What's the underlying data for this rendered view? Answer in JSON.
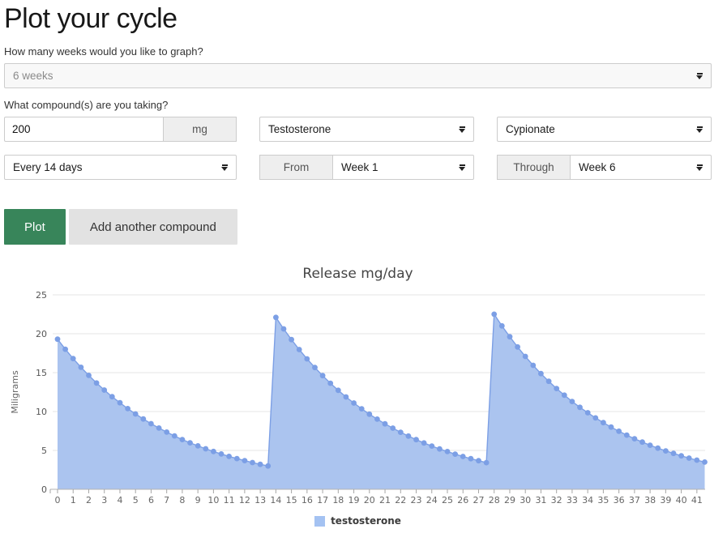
{
  "page": {
    "title": "Plot your cycle",
    "weeks_question": "How many weeks would you like to graph?",
    "weeks_value": "6 weeks",
    "compound_question": "What compound(s) are you taking?",
    "dose_value": "200",
    "dose_unit": "mg",
    "compound_value": "Testosterone",
    "ester_value": "Cypionate",
    "frequency_value": "Every 14 days",
    "from_label": "From",
    "from_value": "Week 1",
    "through_label": "Through",
    "through_value": "Week 6",
    "plot_button": "Plot",
    "add_compound_button": "Add another compound"
  },
  "colors": {
    "accent_green": "#38855A",
    "button_gray": "#e2e2e2",
    "grid_line": "#e6e6e6",
    "axis_line": "#b3b3b3",
    "tick_mark": "#a6a6a6",
    "tick_label": "#666666",
    "ytick_label": "#555555",
    "axis_title": "#666666"
  },
  "chart_data": {
    "type": "area",
    "title": "Release mg/day",
    "ylabel": "Miligrams",
    "ylim": [
      0,
      25
    ],
    "yticks": [
      0,
      5,
      10,
      15,
      20,
      25
    ],
    "xticks": [
      0,
      1,
      2,
      3,
      4,
      5,
      6,
      7,
      8,
      9,
      10,
      11,
      12,
      13,
      14,
      15,
      16,
      17,
      18,
      19,
      20,
      21,
      22,
      23,
      24,
      25,
      26,
      27,
      28,
      29,
      30,
      31,
      32,
      33,
      34,
      35,
      36,
      37,
      38,
      39,
      40,
      41
    ],
    "x_start": 0,
    "x_step": 0.5,
    "grid": true,
    "legend_position": "bottom",
    "series": [
      {
        "name": "testosterone",
        "color": "#A4C2F2",
        "fill_color": "#ABC4EF",
        "marker_color": "#7C9FE5",
        "values": [
          19.3,
          18.01,
          16.81,
          15.69,
          14.65,
          13.67,
          12.76,
          11.91,
          11.12,
          10.38,
          9.69,
          9.04,
          8.44,
          7.88,
          7.35,
          6.86,
          6.4,
          5.98,
          5.58,
          5.21,
          4.86,
          4.54,
          4.23,
          3.95,
          3.69,
          3.44,
          3.21,
          3.0,
          22.1,
          20.63,
          19.25,
          17.97,
          16.77,
          15.66,
          14.61,
          13.64,
          12.73,
          11.88,
          11.09,
          10.35,
          9.66,
          9.02,
          8.42,
          7.86,
          7.33,
          6.84,
          6.39,
          5.96,
          5.56,
          5.19,
          4.85,
          4.52,
          4.22,
          3.94,
          3.68,
          3.43,
          22.51,
          21.01,
          19.61,
          18.3,
          17.08,
          15.94,
          14.88,
          13.89,
          12.96,
          12.1,
          11.29,
          10.54,
          9.84,
          9.18,
          8.57,
          8.0,
          7.47,
          6.97,
          6.5,
          6.07,
          5.67,
          5.29,
          4.94,
          4.61,
          4.3,
          4.01,
          3.75,
          3.5
        ]
      }
    ]
  }
}
